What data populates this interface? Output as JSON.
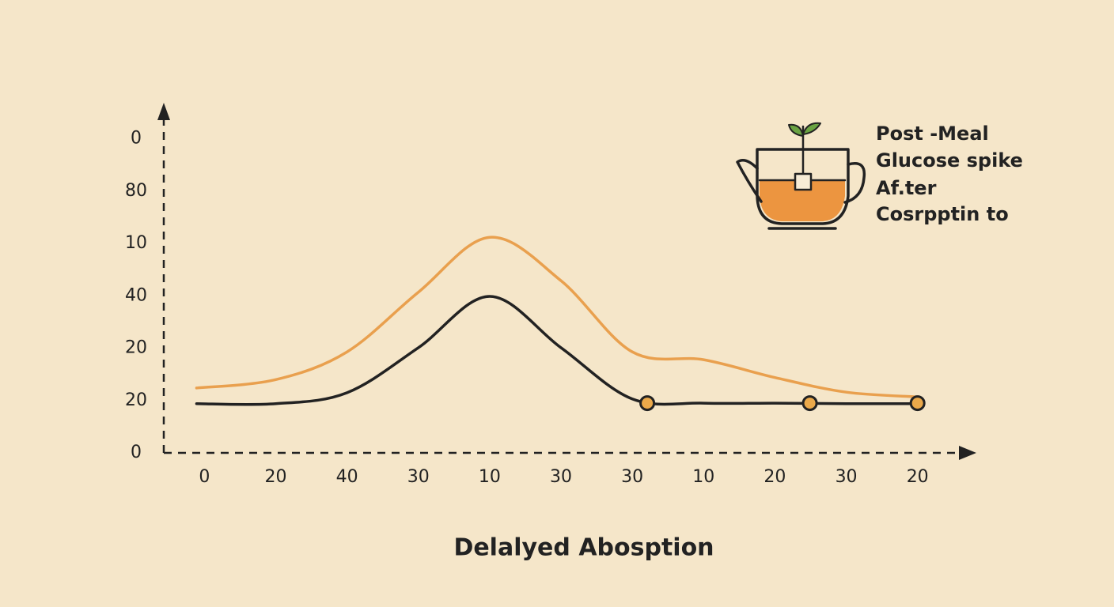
{
  "chart_data": {
    "type": "line",
    "xlabel": "Delalyed Abosption",
    "annotation": [
      "Post -Meal",
      "Glucose spike",
      "Af.ter",
      "Cosrpptin to"
    ],
    "x": [
      -0.11,
      1,
      2,
      3,
      4,
      5,
      6,
      7,
      8,
      9,
      10
    ],
    "series": [
      {
        "color": "#e9a04e",
        "values": [
          1.24,
          1.4,
          1.93,
          3.07,
          4.12,
          3.29,
          1.93,
          1.78,
          1.44,
          1.16,
          1.07
        ]
      },
      {
        "color": "#222222",
        "values": [
          0.94,
          0.94,
          1.15,
          2.01,
          2.99,
          2.01,
          1.03,
          0.95,
          0.95,
          0.94,
          0.94
        ]
      }
    ],
    "markers": {
      "x": [
        6.21,
        8.49,
        10
      ],
      "values": [
        0.95,
        0.95,
        0.95
      ],
      "color": "#eba94a"
    },
    "xlim": [
      -0.57,
      10.78
    ],
    "ylim": [
      0,
      6.6
    ],
    "xticks": [
      0,
      {
        "value": 1,
        "label": "20"
      },
      {
        "value": 2,
        "label": "40"
      },
      {
        "value": 3,
        "label": "30"
      },
      {
        "value": 4,
        "label": "10"
      },
      {
        "value": 5,
        "label": "30"
      },
      {
        "value": 6,
        "label": "30"
      },
      {
        "value": 7,
        "label": "10"
      },
      {
        "value": 8,
        "label": "20"
      },
      {
        "value": 9,
        "label": "30"
      },
      {
        "value": 10,
        "label": "20"
      }
    ],
    "yticks": [
      0,
      {
        "value": 1,
        "label": "20"
      },
      {
        "value": 2,
        "label": "20"
      },
      {
        "value": 3,
        "label": "40"
      },
      {
        "value": 4,
        "label": "10"
      },
      {
        "value": 5,
        "label": "80"
      },
      {
        "value": 6,
        "label": "0"
      }
    ]
  }
}
